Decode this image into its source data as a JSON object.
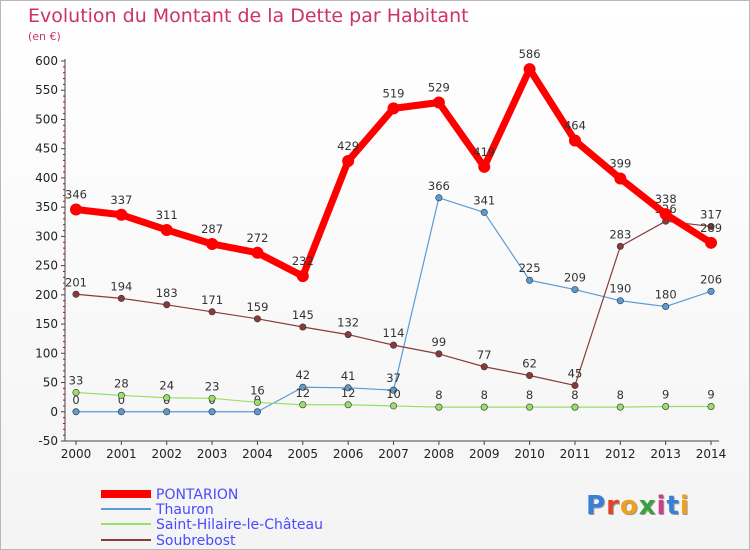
{
  "title": "Evolution du Montant de la Dette par Habitant",
  "unit_label": "(en €)",
  "logo_text": "Proxiti",
  "colors": {
    "title": "#cc3366",
    "PONTARION": "#ff0000",
    "Thauron": "#5b9bd5",
    "Saint-Hilaire-le-Château": "#99e066",
    "Soubrebost": "#8b3a3a",
    "legend_text": "#4a4aff"
  },
  "chart_data": {
    "type": "line",
    "title": "Evolution du Montant de la Dette par Habitant",
    "ylabel": "(en €)",
    "x": [
      "2000",
      "2001",
      "2002",
      "2003",
      "2004",
      "2005",
      "2006",
      "2007",
      "2008",
      "2009",
      "2010",
      "2011",
      "2012",
      "2013",
      "2014"
    ],
    "ylim": [
      -50,
      600
    ],
    "yticks": [
      -50,
      0,
      50,
      100,
      150,
      200,
      250,
      300,
      350,
      400,
      450,
      500,
      550,
      600
    ],
    "grid": false,
    "legend": "bottom-left",
    "series": [
      {
        "name": "PONTARION",
        "values": [
          346,
          337,
          311,
          287,
          272,
          232,
          429,
          519,
          529,
          419,
          586,
          464,
          399,
          338,
          289
        ]
      },
      {
        "name": "Thauron",
        "values": [
          0,
          0,
          0,
          0,
          0,
          42,
          41,
          37,
          366,
          341,
          225,
          209,
          190,
          180,
          206
        ]
      },
      {
        "name": "Saint-Hilaire-le-Château",
        "values": [
          33,
          28,
          24,
          23,
          16,
          12,
          12,
          10,
          8,
          8,
          8,
          8,
          8,
          9,
          9
        ]
      },
      {
        "name": "Soubrebost",
        "values": [
          201,
          194,
          183,
          171,
          159,
          145,
          132,
          114,
          99,
          77,
          62,
          45,
          283,
          326,
          317
        ]
      }
    ]
  }
}
